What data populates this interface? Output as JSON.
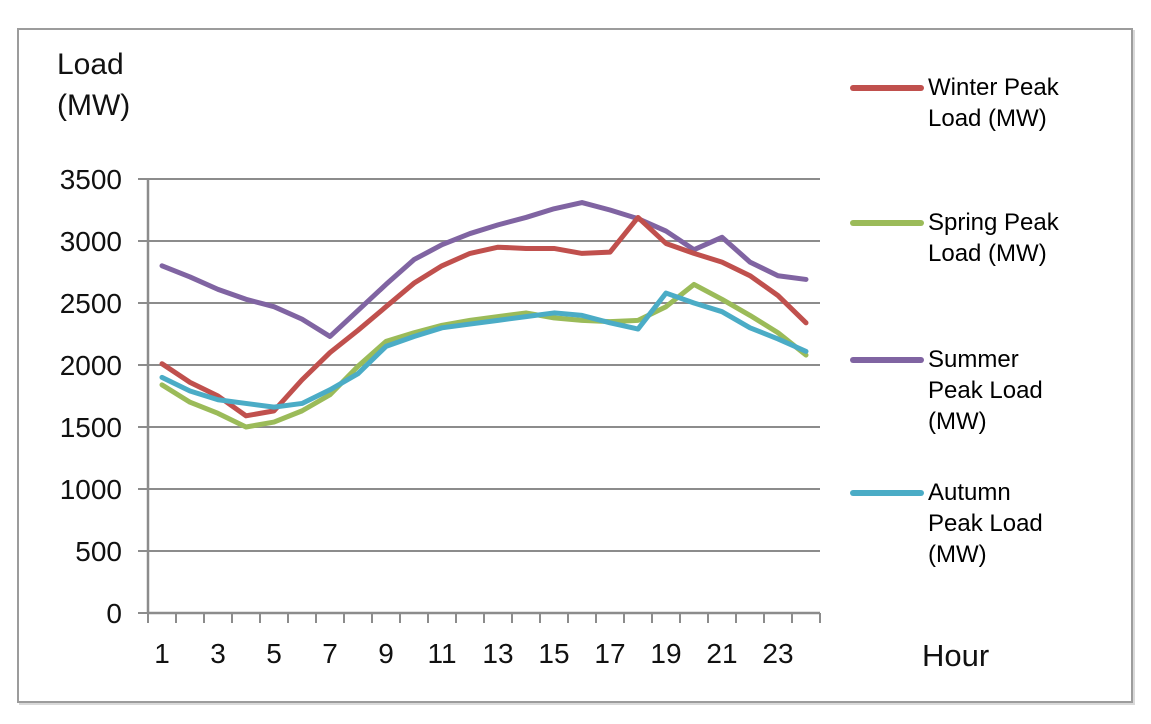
{
  "chart_data": {
    "type": "line",
    "ylabel": "Load (MW)",
    "xlabel": "Hour",
    "x": [
      1,
      2,
      3,
      4,
      5,
      6,
      7,
      8,
      9,
      10,
      11,
      12,
      13,
      14,
      15,
      16,
      17,
      18,
      19,
      20,
      21,
      22,
      23,
      24
    ],
    "x_tick_hours": [
      1,
      3,
      5,
      7,
      9,
      11,
      13,
      15,
      17,
      19,
      21,
      23
    ],
    "x_tick_labels": [
      "1",
      "3",
      "5",
      "7",
      "9",
      "11",
      "13",
      "15",
      "17",
      "19",
      "21",
      "23"
    ],
    "y_ticks": [
      0,
      500,
      1000,
      1500,
      2000,
      2500,
      3000,
      3500
    ],
    "y_tick_labels": [
      "0",
      "500",
      "1000",
      "1500",
      "2000",
      "2500",
      "3000",
      "3500"
    ],
    "ylim": [
      0,
      3500
    ],
    "grid": true,
    "legend_position": "right",
    "axis_color": "#8c8c8c",
    "series": [
      {
        "name": "Winter Peak Load (MW)",
        "color": "#C0504D",
        "values": [
          2010,
          1860,
          1750,
          1590,
          1630,
          1880,
          2100,
          2280,
          2470,
          2660,
          2800,
          2900,
          2950,
          2940,
          2940,
          2900,
          2910,
          3190,
          2980,
          2900,
          2830,
          2720,
          2560,
          2340
        ]
      },
      {
        "name": "Spring Peak Load (MW)",
        "color": "#9BBB59",
        "values": [
          1840,
          1700,
          1610,
          1500,
          1540,
          1630,
          1760,
          1990,
          2190,
          2260,
          2320,
          2360,
          2390,
          2420,
          2380,
          2360,
          2350,
          2360,
          2470,
          2650,
          2530,
          2400,
          2260,
          2080
        ]
      },
      {
        "name": "Summer Peak Load (MW)",
        "color": "#8064A2",
        "values": [
          2800,
          2710,
          2610,
          2530,
          2470,
          2370,
          2230,
          2440,
          2650,
          2850,
          2970,
          3060,
          3130,
          3190,
          3260,
          3310,
          3250,
          3180,
          3080,
          2930,
          3030,
          2830,
          2720,
          2690
        ]
      },
      {
        "name": "Autumn Peak Load (MW)",
        "color": "#4BACC6",
        "values": [
          1900,
          1790,
          1720,
          1690,
          1660,
          1690,
          1800,
          1930,
          2150,
          2230,
          2300,
          2330,
          2360,
          2390,
          2420,
          2400,
          2340,
          2290,
          2580,
          2500,
          2430,
          2300,
          2210,
          2110
        ]
      }
    ]
  },
  "labels": {
    "y_axis_title": "Load (MW)",
    "x_axis_title": "Hour"
  }
}
